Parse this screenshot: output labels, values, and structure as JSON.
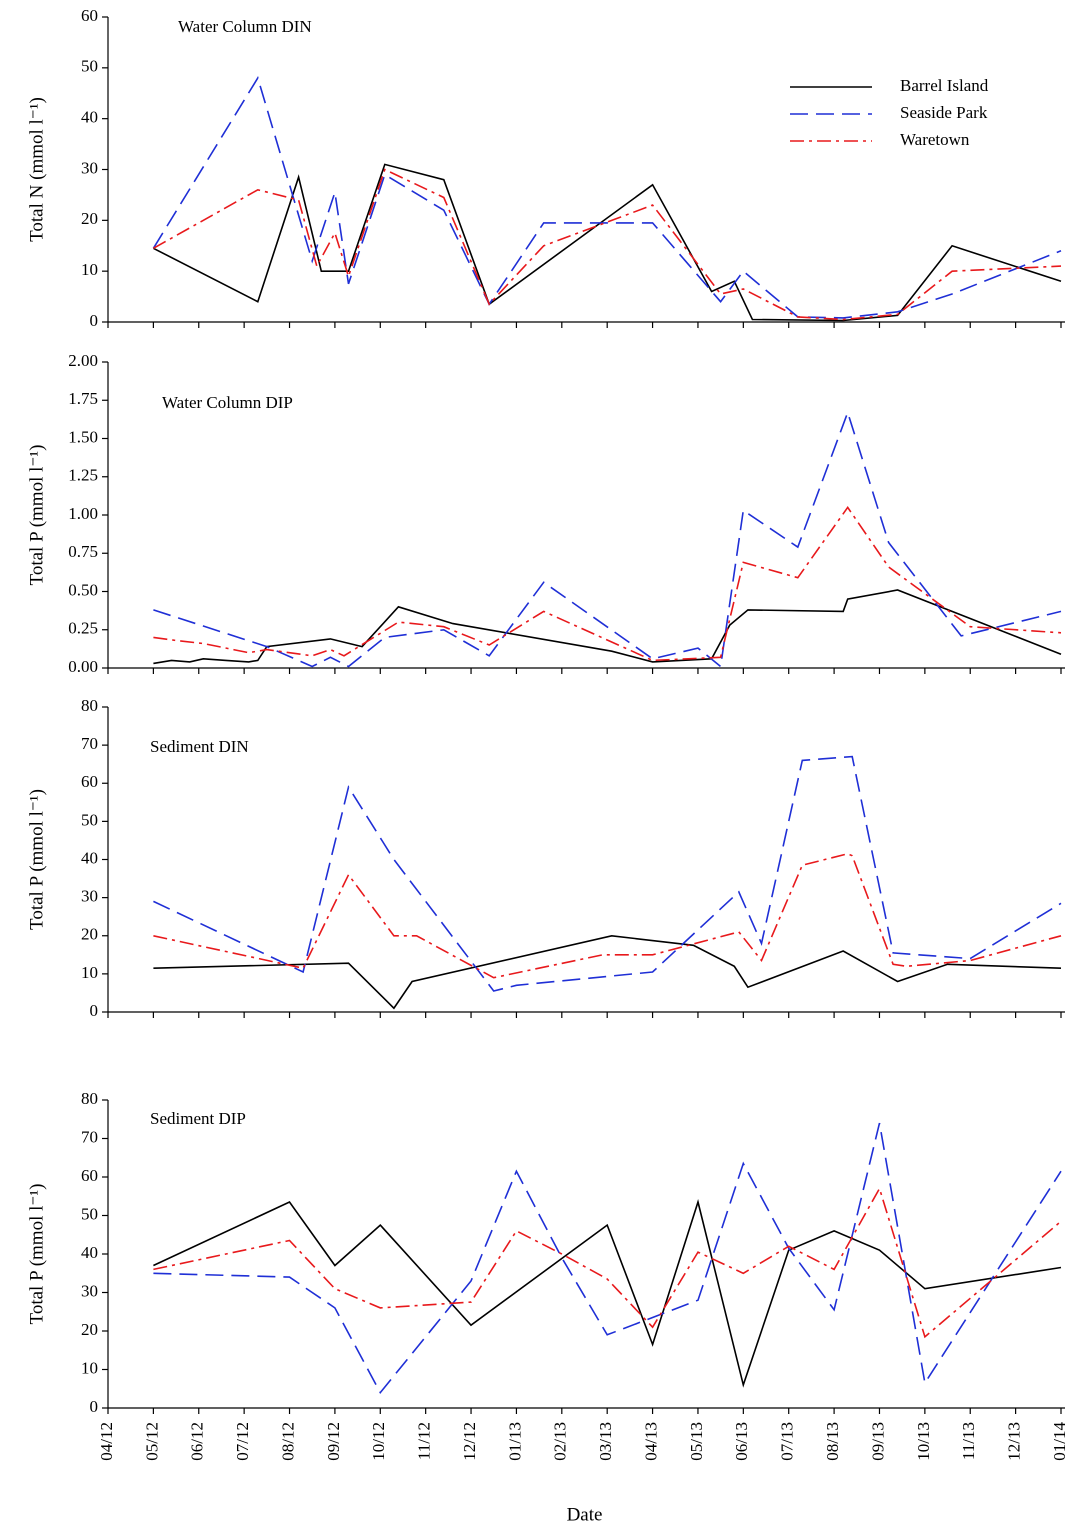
{
  "chart_data": [
    {
      "type": "line",
      "title": "Water Column DIN",
      "ylabel": "Total N (mmol l⁻¹)",
      "ylim": [
        0,
        60
      ],
      "yticks": [
        0,
        10,
        20,
        30,
        40,
        50,
        60
      ],
      "xlim": [
        0,
        21
      ],
      "legend": "upper right",
      "series": [
        {
          "name": "Barrel Island",
          "color": "#000000",
          "linestyle": "solid",
          "x": [
            1.0,
            3.3,
            4.2,
            4.7,
            5.3,
            6.1,
            7.4,
            8.4,
            12.0,
            13.3,
            13.8,
            14.2,
            16.2,
            17.4,
            18.6,
            21.0
          ],
          "values": [
            14.5,
            4,
            28.5,
            10,
            10,
            31,
            28,
            3.5,
            27,
            6,
            8,
            0.5,
            0.3,
            1.3,
            15,
            8
          ]
        },
        {
          "name": "Seaside Park",
          "color": "#1f2fd6",
          "linestyle": "dashed",
          "x": [
            1.0,
            3.3,
            4.5,
            5.0,
            5.3,
            6.1,
            7.4,
            8.4,
            9.6,
            12.0,
            13.5,
            14.0,
            15.2,
            16.2,
            17.4,
            18.6,
            21.0
          ],
          "values": [
            14.5,
            48,
            12,
            25.5,
            7.5,
            29,
            22,
            3.5,
            19.5,
            19.5,
            4,
            10,
            1,
            0.8,
            2,
            5.5,
            14
          ]
        },
        {
          "name": "Waretown",
          "color": "#e8191c",
          "linestyle": "dashdot",
          "x": [
            1.0,
            3.3,
            4.2,
            4.6,
            5.0,
            5.3,
            6.1,
            7.4,
            8.4,
            9.6,
            12.0,
            13.5,
            14.0,
            15.2,
            16.2,
            17.4,
            18.6,
            21.0
          ],
          "values": [
            14.5,
            26,
            24,
            11,
            17.5,
            9,
            30,
            24.5,
            3.5,
            15,
            23,
            5.5,
            6.5,
            1,
            0.5,
            1.5,
            10,
            11
          ]
        }
      ]
    },
    {
      "type": "line",
      "title": "Water Column DIP",
      "ylabel": "Total P (mmol l⁻¹)",
      "ylim": [
        0,
        2
      ],
      "yticks": [
        {
          "value": 0,
          "label": "0.00"
        },
        {
          "value": 0.25,
          "label": "0.25"
        },
        {
          "value": 0.5,
          "label": "0.50"
        },
        {
          "value": 0.75,
          "label": "0.75"
        },
        {
          "value": 1,
          "label": "1.00"
        },
        {
          "value": 1.25,
          "label": "1.25"
        },
        {
          "value": 1.5,
          "label": "1.50"
        },
        {
          "value": 1.75,
          "label": "1.75"
        },
        {
          "value": 2,
          "label": "2.00"
        }
      ],
      "xlim": [
        0,
        21
      ],
      "series": [
        {
          "color": "#000000",
          "linestyle": "solid",
          "x": [
            1.0,
            1.4,
            1.8,
            2.1,
            2.6,
            3.1,
            3.3,
            3.5,
            4.9,
            5.6,
            6.4,
            7.6,
            11.1,
            12.0,
            13.3,
            13.7,
            14.1,
            16.2,
            16.3,
            17.4,
            21.0
          ],
          "values": [
            0.03,
            0.05,
            0.04,
            0.06,
            0.05,
            0.04,
            0.05,
            0.14,
            0.19,
            0.14,
            0.4,
            0.29,
            0.11,
            0.04,
            0.06,
            0.28,
            0.38,
            0.37,
            0.45,
            0.51,
            0.09
          ]
        },
        {
          "color": "#1f2fd6",
          "linestyle": "dashed",
          "x": [
            1.0,
            3.5,
            4.5,
            4.9,
            5.3,
            6.1,
            7.4,
            8.4,
            9.6,
            12.0,
            13.0,
            13.5,
            14.0,
            15.2,
            16.3,
            17.2,
            18.8,
            21.0
          ],
          "values": [
            0.38,
            0.14,
            0.01,
            0.07,
            0.01,
            0.2,
            0.25,
            0.08,
            0.56,
            0.06,
            0.13,
            0.01,
            1.03,
            0.79,
            1.67,
            0.82,
            0.21,
            0.37
          ]
        },
        {
          "color": "#e8191c",
          "linestyle": "dashdot",
          "x": [
            1.0,
            1.5,
            2.1,
            3.1,
            3.5,
            4.5,
            4.9,
            5.2,
            6.4,
            7.4,
            8.4,
            9.6,
            12.0,
            13.5,
            14.0,
            15.2,
            16.3,
            17.2,
            19.0,
            21.0
          ],
          "values": [
            0.2,
            0.18,
            0.16,
            0.1,
            0.12,
            0.08,
            0.12,
            0.08,
            0.3,
            0.27,
            0.15,
            0.37,
            0.05,
            0.07,
            0.69,
            0.59,
            1.05,
            0.66,
            0.27,
            0.23
          ]
        }
      ]
    },
    {
      "type": "line",
      "title": "Sediment DIN",
      "ylabel": "Total P (mmol l⁻¹)",
      "ylim": [
        0,
        80
      ],
      "yticks": [
        0,
        10,
        20,
        30,
        40,
        50,
        60,
        70,
        80
      ],
      "xlim": [
        0,
        21
      ],
      "series": [
        {
          "color": "#000000",
          "linestyle": "solid",
          "x": [
            1,
            5.3,
            6.3,
            6.7,
            11.1,
            12.9,
            13.8,
            14.1,
            16.2,
            17.4,
            18.5,
            21
          ],
          "values": [
            11.5,
            12.8,
            1,
            8,
            20,
            17.5,
            12,
            6.5,
            16,
            8,
            12.5,
            11.5
          ]
        },
        {
          "color": "#1f2fd6",
          "linestyle": "dashed",
          "x": [
            1,
            4.3,
            5.3,
            6.3,
            8.5,
            9,
            12,
            13.9,
            14.4,
            15.3,
            16.4,
            17.3,
            19,
            21
          ],
          "values": [
            29,
            10.5,
            59,
            40,
            5.5,
            7,
            10.5,
            31.5,
            18,
            66,
            67,
            15.5,
            14,
            28.5
          ]
        },
        {
          "color": "#e8191c",
          "linestyle": "dashdot",
          "x": [
            1,
            4.3,
            5.3,
            6.3,
            6.8,
            8.5,
            10.9,
            12,
            13.9,
            14.4,
            15.3,
            16.3,
            16.4,
            17.3,
            17.6,
            19,
            21
          ],
          "values": [
            20,
            11.5,
            36,
            20,
            20,
            9,
            15,
            15,
            21,
            13.5,
            38.5,
            41.5,
            41,
            12.5,
            12,
            13.5,
            20
          ]
        }
      ]
    },
    {
      "type": "line",
      "title": "Sediment DIP",
      "ylabel": "Total P (mmol l⁻¹)",
      "xlabel": "Date",
      "ylim": [
        0,
        80
      ],
      "yticks": [
        0,
        10,
        20,
        30,
        40,
        50,
        60,
        70,
        80
      ],
      "xlim": [
        0,
        21
      ],
      "xticks": [
        {
          "value": 0,
          "label": "04/12"
        },
        {
          "value": 1,
          "label": "05/12"
        },
        {
          "value": 2,
          "label": "06/12"
        },
        {
          "value": 3,
          "label": "07/12"
        },
        {
          "value": 4,
          "label": "08/12"
        },
        {
          "value": 5,
          "label": "09/12"
        },
        {
          "value": 6,
          "label": "10/12"
        },
        {
          "value": 7,
          "label": "11/12"
        },
        {
          "value": 8,
          "label": "12/12"
        },
        {
          "value": 9,
          "label": "01/13"
        },
        {
          "value": 10,
          "label": "02/13"
        },
        {
          "value": 11,
          "label": "03/13"
        },
        {
          "value": 12,
          "label": "04/13"
        },
        {
          "value": 13,
          "label": "05/13"
        },
        {
          "value": 14,
          "label": "06/13"
        },
        {
          "value": 15,
          "label": "07/13"
        },
        {
          "value": 16,
          "label": "08/13"
        },
        {
          "value": 17,
          "label": "09/13"
        },
        {
          "value": 18,
          "label": "10/13"
        },
        {
          "value": 19,
          "label": "11/13"
        },
        {
          "value": 20,
          "label": "12/13"
        },
        {
          "value": 21,
          "label": "01/14"
        }
      ],
      "series": [
        {
          "color": "#000000",
          "linestyle": "solid",
          "x": [
            1,
            4,
            5,
            6,
            8,
            11,
            12,
            13,
            14,
            15,
            16,
            17,
            18,
            21
          ],
          "values": [
            37,
            53.5,
            37,
            47.5,
            21.5,
            47.5,
            16.5,
            53.5,
            6,
            41,
            46,
            41,
            31,
            36.5
          ]
        },
        {
          "color": "#1f2fd6",
          "linestyle": "dashed",
          "x": [
            1,
            4,
            5,
            6,
            8,
            9,
            10,
            11,
            12,
            13,
            14,
            15,
            16,
            17,
            18,
            21
          ],
          "values": [
            35,
            34,
            26,
            4,
            33,
            61.5,
            39,
            19,
            23.5,
            28,
            63.5,
            41.5,
            25.5,
            74,
            6.5,
            61.5
          ]
        },
        {
          "color": "#e8191c",
          "linestyle": "dashdot",
          "x": [
            1,
            4,
            5,
            6,
            8,
            9,
            10,
            11,
            12,
            13,
            14,
            15,
            16,
            17,
            18,
            21
          ],
          "values": [
            36,
            43.5,
            31,
            26,
            27.5,
            46,
            40,
            33.5,
            21,
            40.5,
            35,
            42,
            36,
            57,
            18.5,
            48.5
          ]
        }
      ]
    }
  ]
}
